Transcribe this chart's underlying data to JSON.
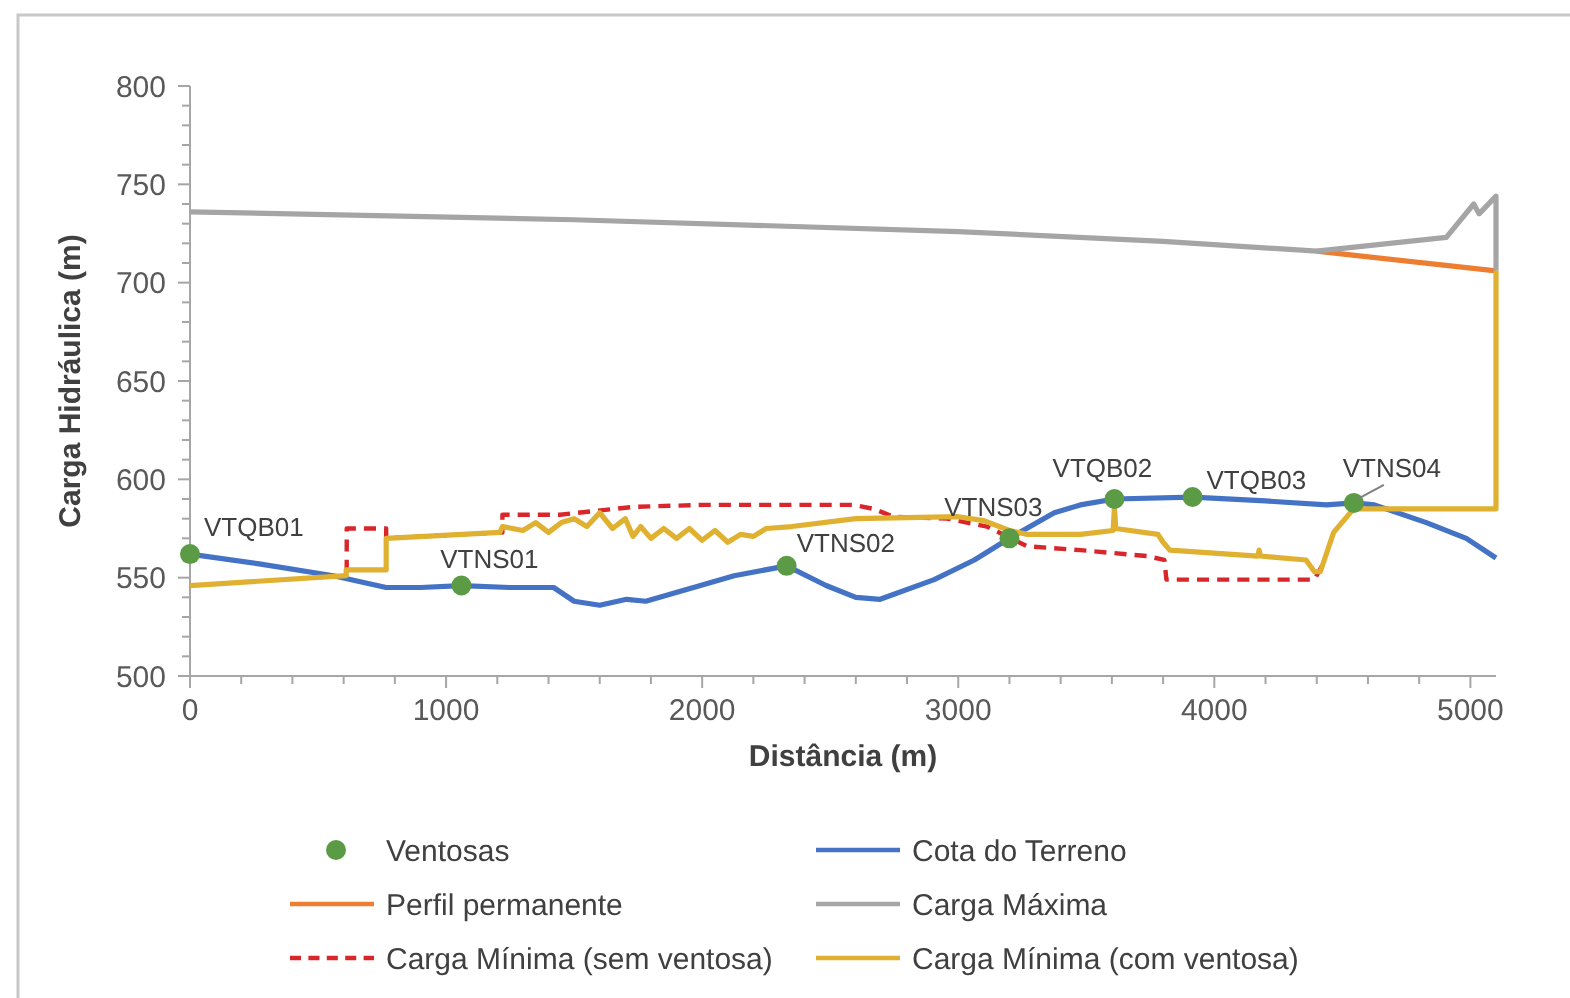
{
  "chart_data": {
    "type": "line",
    "xlabel": "Distância (m)",
    "ylabel": "Carga Hidráulica (m)",
    "xlim": [
      0,
      5100
    ],
    "xticks": [
      0,
      {
        "value": 200,
        "label": null
      },
      {
        "value": 400,
        "label": null
      },
      {
        "value": 600,
        "label": null
      },
      {
        "value": 800,
        "label": null
      },
      1000,
      {
        "value": 1200,
        "label": null
      },
      {
        "value": 1400,
        "label": null
      },
      {
        "value": 1600,
        "label": null
      },
      {
        "value": 1800,
        "label": null
      },
      2000,
      {
        "value": 2200,
        "label": null
      },
      {
        "value": 2400,
        "label": null
      },
      {
        "value": 2600,
        "label": null
      },
      {
        "value": 2800,
        "label": null
      },
      3000,
      {
        "value": 3200,
        "label": null
      },
      {
        "value": 3400,
        "label": null
      },
      {
        "value": 3600,
        "label": null
      },
      {
        "value": 3800,
        "label": null
      },
      4000,
      {
        "value": 4200,
        "label": null
      },
      {
        "value": 4400,
        "label": null
      },
      {
        "value": 4600,
        "label": null
      },
      {
        "value": 4800,
        "label": null
      },
      5000
    ],
    "ylim": [
      500,
      800
    ],
    "yticks": [
      500,
      {
        "value": 510,
        "label": null
      },
      {
        "value": 520,
        "label": null
      },
      {
        "value": 530,
        "label": null
      },
      {
        "value": 540,
        "label": null
      },
      550,
      {
        "value": 560,
        "label": null
      },
      {
        "value": 570,
        "label": null
      },
      {
        "value": 580,
        "label": null
      },
      {
        "value": 590,
        "label": null
      },
      600,
      {
        "value": 610,
        "label": null
      },
      {
        "value": 620,
        "label": null
      },
      {
        "value": 630,
        "label": null
      },
      {
        "value": 640,
        "label": null
      },
      650,
      {
        "value": 660,
        "label": null
      },
      {
        "value": 670,
        "label": null
      },
      {
        "value": 680,
        "label": null
      },
      {
        "value": 690,
        "label": null
      },
      700,
      {
        "value": 710,
        "label": null
      },
      {
        "value": 720,
        "label": null
      },
      {
        "value": 730,
        "label": null
      },
      {
        "value": 740,
        "label": null
      },
      750,
      {
        "value": 760,
        "label": null
      },
      {
        "value": 770,
        "label": null
      },
      {
        "value": 780,
        "label": null
      },
      {
        "value": 790,
        "label": null
      },
      800
    ],
    "legend": "bottom",
    "series": [
      {
        "name": "Ventosas",
        "type": "scatter",
        "marker": "circle",
        "color": "#5b9b45",
        "x": [
          0,
          1060,
          2330,
          3200,
          3610,
          3915,
          4545
        ],
        "values": [
          562,
          546,
          556,
          570,
          590,
          591,
          588
        ]
      },
      {
        "name": "Cota do Terreno",
        "color": "#4472c4",
        "x": [
          0,
          270,
          560,
          766,
          900,
          1060,
          1250,
          1420,
          1500,
          1600,
          1705,
          1780,
          1966,
          2125,
          2330,
          2484,
          2600,
          2695,
          2906,
          3063,
          3200,
          3375,
          3477,
          3610,
          3915,
          4200,
          4438,
          4545,
          4625,
          4828,
          4984,
          5100
        ],
        "values": [
          562,
          557,
          551,
          545,
          545,
          546,
          545,
          545,
          538,
          536,
          539,
          538,
          545,
          551,
          556,
          546,
          540,
          539,
          549,
          559,
          570,
          583,
          587,
          590,
          591,
          589,
          587,
          588,
          587,
          578,
          570,
          560
        ]
      },
      {
        "name": "Perfil permanente",
        "color": "#ed7d31",
        "x": [
          4400,
          5100
        ],
        "values": [
          716,
          706
        ]
      },
      {
        "name": "Carga Máxima",
        "color": "#a5a5a5",
        "x": [
          0,
          1500,
          3000,
          3800,
          4400,
          4906,
          5013,
          5034,
          5100,
          5100
        ],
        "values": [
          736,
          732,
          726,
          721,
          716,
          723,
          740,
          735,
          744,
          706
        ]
      },
      {
        "name": "Carga Mínima (sem ventosa)",
        "line_style": "dashed",
        "color": "#d9262b",
        "x": [
          612,
          612,
          766,
          766,
          1210,
          1220,
          1220,
          1445,
          1732,
          2000,
          2300,
          2591,
          2669,
          2747,
          2956,
          3112,
          3268,
          3477,
          3736,
          3805,
          3813,
          4391,
          4420
        ],
        "values": [
          553,
          575,
          575,
          570,
          573,
          573,
          582,
          582,
          586,
          587,
          587,
          587,
          585,
          581,
          580,
          576,
          566,
          564,
          561,
          559,
          549,
          549,
          556
        ]
      },
      {
        "name": "Carga Mínima (com ventosa)",
        "color": "#e0b030",
        "x": [
          0,
          610,
          610,
          766,
          766,
          1210,
          1220,
          1300,
          1350,
          1400,
          1450,
          1500,
          1550,
          1600,
          1650,
          1700,
          1730,
          1760,
          1800,
          1850,
          1900,
          1950,
          2000,
          2050,
          2100,
          2150,
          2200,
          2250,
          2350,
          2600,
          3000,
          3100,
          3200,
          3270,
          3477,
          3605,
          3610,
          3615,
          3780,
          3800,
          3826,
          4170,
          4175,
          4180,
          4358,
          4391,
          4414,
          4466,
          4544,
          5100,
          5100
        ],
        "values": [
          546,
          551,
          554,
          554,
          570,
          573,
          576,
          574,
          578,
          573,
          578,
          580,
          576,
          583,
          575,
          580,
          571,
          576,
          570,
          575,
          570,
          575,
          569,
          574,
          568,
          572,
          571,
          575,
          576,
          580,
          581,
          579,
          574,
          572,
          572,
          574,
          586,
          575,
          572,
          568,
          564,
          561,
          564,
          561,
          559,
          553,
          553,
          573,
          585,
          585,
          706
        ]
      }
    ],
    "annotations": [
      {
        "text": "VTQB01",
        "x": 0,
        "y": 562
      },
      {
        "text": "VTNS01",
        "x": 1060,
        "y": 546
      },
      {
        "text": "VTNS02",
        "x": 2330,
        "y": 556
      },
      {
        "text": "VTNS03",
        "x": 3200,
        "y": 570
      },
      {
        "text": "VTQB02",
        "x": 3610,
        "y": 590
      },
      {
        "text": "VTQB03",
        "x": 3915,
        "y": 591
      },
      {
        "text": "VTNS04",
        "x": 4545,
        "y": 588
      }
    ]
  }
}
